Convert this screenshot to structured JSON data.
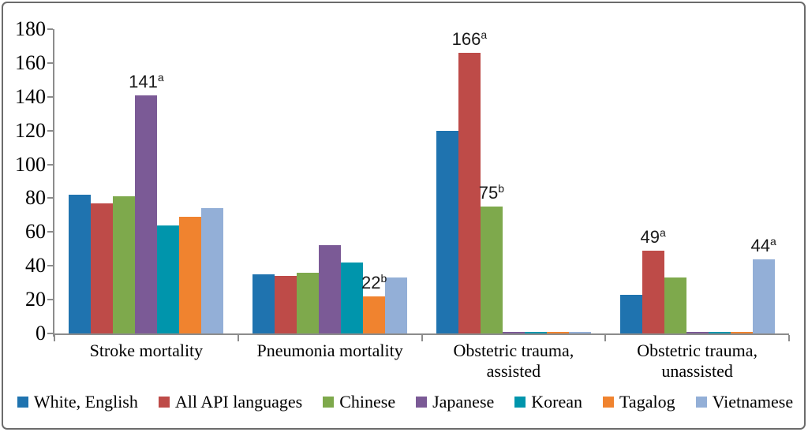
{
  "chart_data": {
    "type": "bar",
    "title": "",
    "xlabel": "",
    "ylabel": "",
    "ylim": [
      0,
      180
    ],
    "yticks": [
      0,
      20,
      40,
      60,
      80,
      100,
      120,
      140,
      160,
      180
    ],
    "grid": false,
    "legend_position": "bottom",
    "categories": [
      "Stroke mortality",
      "Pneumonia mortality",
      "Obstetric trauma, assisted",
      "Obstetric trauma, unassisted"
    ],
    "series": [
      {
        "name": "White, English",
        "color": "#1F73AF",
        "values": [
          82,
          35,
          120,
          23
        ]
      },
      {
        "name": "All API languages",
        "color": "#BE4B48",
        "values": [
          77,
          34,
          166,
          49
        ]
      },
      {
        "name": "Chinese",
        "color": "#7EA94C",
        "values": [
          81,
          36,
          75,
          33
        ]
      },
      {
        "name": "Japanese",
        "color": "#7B5A96",
        "values": [
          141,
          52,
          1,
          1
        ]
      },
      {
        "name": "Korean",
        "color": "#0095AC",
        "values": [
          64,
          42,
          1,
          1
        ]
      },
      {
        "name": "Tagalog",
        "color": "#F0832F",
        "values": [
          69,
          22,
          1,
          1
        ]
      },
      {
        "name": "Vietnamese",
        "color": "#93AFD7",
        "values": [
          74,
          33,
          1,
          44
        ]
      }
    ],
    "annotations": [
      {
        "category": 0,
        "series": 3,
        "value": "141",
        "sup": "a"
      },
      {
        "category": 1,
        "series": 5,
        "value": "22",
        "sup": "b"
      },
      {
        "category": 2,
        "series": 1,
        "value": "166",
        "sup": "a"
      },
      {
        "category": 2,
        "series": 2,
        "value": "75",
        "sup": "b"
      },
      {
        "category": 3,
        "series": 1,
        "value": "49",
        "sup": "a"
      },
      {
        "category": 3,
        "series": 6,
        "value": "44",
        "sup": "a"
      }
    ]
  }
}
